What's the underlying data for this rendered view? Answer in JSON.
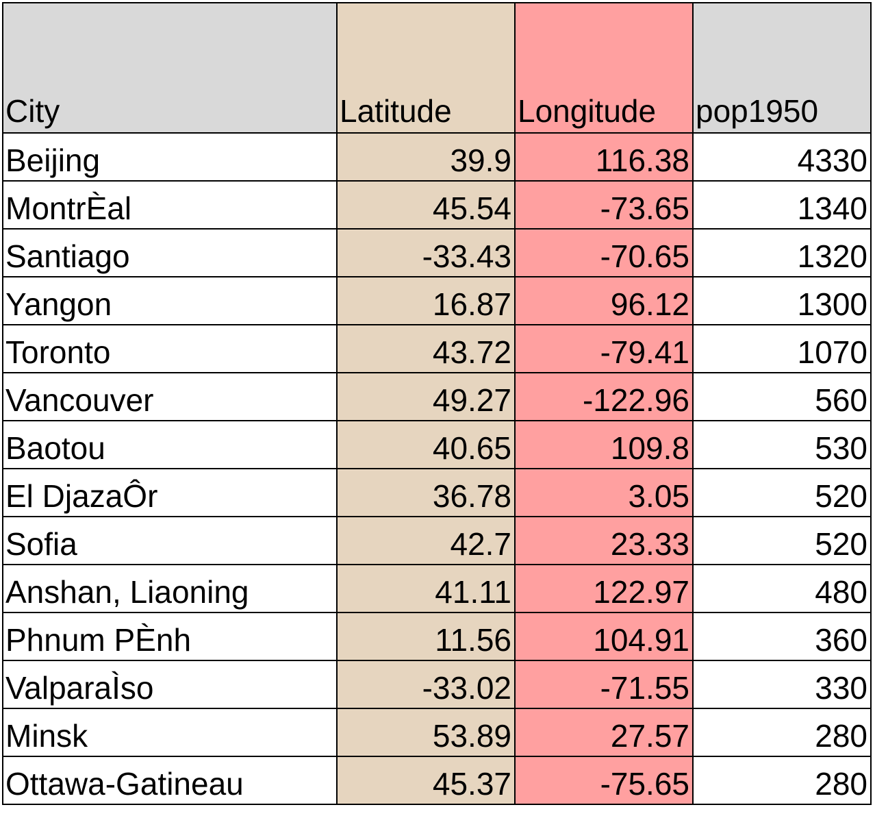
{
  "colors": {
    "header_gray": "#d9d9d9",
    "latitude_fill": "#e6d5bf",
    "longitude_fill": "#ffa0a0",
    "plain_fill": "#ffffff",
    "border": "#000000"
  },
  "table": {
    "headers": [
      "City",
      "Latitude",
      "Longitude",
      "pop1950"
    ],
    "rows": [
      [
        "Beijing",
        "39.9",
        "116.38",
        "4330"
      ],
      [
        "MontrÈal",
        "45.54",
        "-73.65",
        "1340"
      ],
      [
        "Santiago",
        "-33.43",
        "-70.65",
        "1320"
      ],
      [
        "Yangon",
        "16.87",
        "96.12",
        "1300"
      ],
      [
        "Toronto",
        "43.72",
        "-79.41",
        "1070"
      ],
      [
        "Vancouver",
        "49.27",
        "-122.96",
        "560"
      ],
      [
        "Baotou",
        "40.65",
        "109.8",
        "530"
      ],
      [
        "El DjazaÔr",
        "36.78",
        "3.05",
        "520"
      ],
      [
        "Sofia",
        "42.7",
        "23.33",
        "520"
      ],
      [
        "Anshan, Liaoning",
        "41.11",
        "122.97",
        "480"
      ],
      [
        "Phnum PÈnh",
        "11.56",
        "104.91",
        "360"
      ],
      [
        "ValparaÌso",
        "-33.02",
        "-71.55",
        "330"
      ],
      [
        "Minsk",
        "53.89",
        "27.57",
        "280"
      ],
      [
        "Ottawa-Gatineau",
        "45.37",
        "-75.65",
        "280"
      ]
    ]
  }
}
